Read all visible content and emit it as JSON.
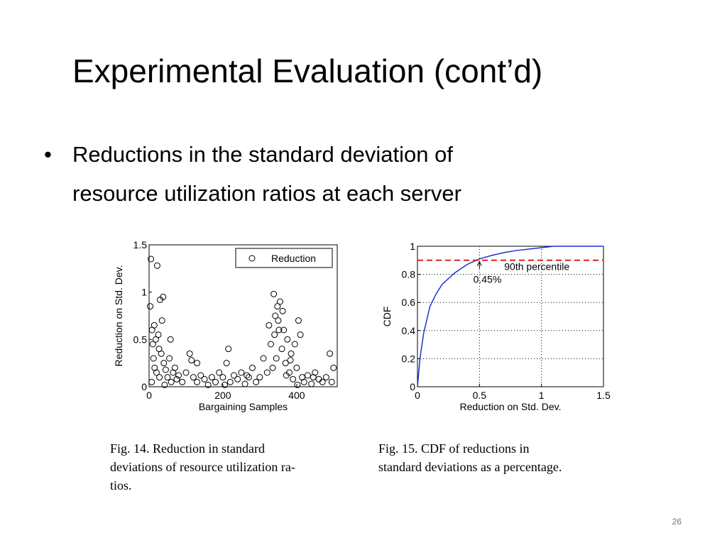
{
  "slide": {
    "title": "Experimental Evaluation (cont’d)",
    "bullets": [
      "Reductions in the standard deviation of",
      "resource utilization ratios at each server"
    ],
    "page_number": "26"
  },
  "chart_data": [
    {
      "type": "scatter",
      "ylabel": "Reduction on Std. Dev.",
      "xlabel": "Bargaining Samples",
      "xlim": [
        0,
        510
      ],
      "xticks": [
        0,
        200,
        400
      ],
      "ylim": [
        0,
        1.5
      ],
      "yticks": [
        0,
        0.5,
        1,
        1.5
      ],
      "legend": "upper right",
      "grid": false,
      "series": [
        {
          "name": "Reduction",
          "color": "#000000",
          "x": [
            3,
            5,
            8,
            10,
            12,
            15,
            18,
            20,
            22,
            25,
            28,
            30,
            33,
            35,
            38,
            40,
            45,
            50,
            55,
            60,
            65,
            70,
            75,
            80,
            90,
            100,
            110,
            115,
            120,
            130,
            140,
            150,
            160,
            170,
            180,
            190,
            200,
            210,
            215,
            220,
            230,
            240,
            250,
            260,
            270,
            280,
            290,
            300,
            310,
            320,
            325,
            330,
            335,
            338,
            340,
            345,
            348,
            350,
            355,
            360,
            365,
            370,
            375,
            380,
            385,
            390,
            395,
            400,
            405,
            410,
            415,
            420,
            430,
            440,
            450,
            460,
            470,
            480,
            490,
            500,
            7,
            14,
            27,
            42,
            58,
            130,
            205,
            265,
            342,
            352,
            362,
            372,
            383,
            402,
            445,
            495
          ],
          "values": [
            0.85,
            1.35,
            0.6,
            0.45,
            0.3,
            0.2,
            0.5,
            0.15,
            1.28,
            0.55,
            0.1,
            0.92,
            0.35,
            0.7,
            0.95,
            0.25,
            0.18,
            0.1,
            0.3,
            0.05,
            0.15,
            0.2,
            0.08,
            0.12,
            0.05,
            0.15,
            0.35,
            0.28,
            0.1,
            0.05,
            0.12,
            0.08,
            0.02,
            0.1,
            0.05,
            0.15,
            0.1,
            0.25,
            0.4,
            0.05,
            0.12,
            0.08,
            0.15,
            0.03,
            0.1,
            0.2,
            0.05,
            0.1,
            0.3,
            0.15,
            0.65,
            0.45,
            0.2,
            0.98,
            0.55,
            0.3,
            0.85,
            0.7,
            0.9,
            0.4,
            0.6,
            0.25,
            0.5,
            0.15,
            0.35,
            0.08,
            0.45,
            0.2,
            0.7,
            0.55,
            0.1,
            0.05,
            0.12,
            0.03,
            0.15,
            0.08,
            0.05,
            0.1,
            0.35,
            0.2,
            0.05,
            0.65,
            0.4,
            0.02,
            0.5,
            0.25,
            0.02,
            0.12,
            0.75,
            0.6,
            0.8,
            0.12,
            0.28,
            0.02,
            0.1,
            0.05
          ]
        }
      ],
      "caption": [
        "Fig. 14.     Reduction in standard",
        "deviations of resource utilization ra-",
        "tios."
      ]
    },
    {
      "type": "line",
      "ylabel": "CDF",
      "xlabel": "Reduction on Std. Dev.",
      "xlim": [
        0,
        1.5
      ],
      "xticks": [
        0,
        0.5,
        1,
        1.5
      ],
      "ylim": [
        0,
        1
      ],
      "yticks": [
        0,
        0.2,
        0.4,
        0.6,
        0.8,
        1
      ],
      "grid": true,
      "x": [
        0,
        0.02,
        0.05,
        0.1,
        0.15,
        0.2,
        0.3,
        0.4,
        0.5,
        0.6,
        0.7,
        0.8,
        0.9,
        1.0,
        1.1,
        1.5
      ],
      "series": [
        {
          "color": "#1f2fd0",
          "values": [
            0,
            0.2,
            0.38,
            0.57,
            0.66,
            0.73,
            0.81,
            0.87,
            0.91,
            0.935,
            0.955,
            0.97,
            0.98,
            0.99,
            1,
            1
          ]
        }
      ],
      "reference_line": {
        "value": 0.9,
        "color": "#e02020"
      },
      "annotations": [
        {
          "text": "90th percentile",
          "x": 0.7,
          "y": 0.83
        },
        {
          "text": "0.45%",
          "x": 0.45,
          "y": 0.74
        }
      ],
      "caption": [
        "Fig. 15.     CDF of reductions in",
        "standard deviations as a percentage."
      ]
    }
  ]
}
